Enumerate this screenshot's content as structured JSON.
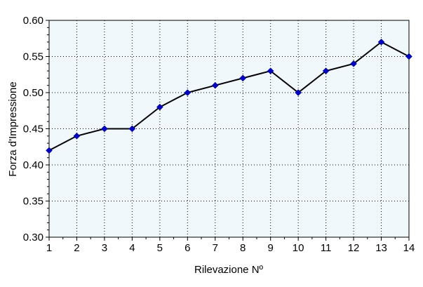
{
  "chart_data": {
    "type": "line",
    "xlabel": "Rilevazione Nº",
    "ylabel": "Forza d'Impressione",
    "x": [
      1,
      2,
      3,
      4,
      5,
      6,
      7,
      8,
      9,
      10,
      11,
      12,
      13,
      14
    ],
    "series": [
      {
        "values": [
          0.42,
          0.44,
          0.45,
          0.45,
          0.48,
          0.5,
          0.51,
          0.52,
          0.53,
          0.5,
          0.53,
          0.54,
          0.57,
          0.55
        ]
      }
    ],
    "xlim": [
      1,
      14
    ],
    "ylim": [
      0.3,
      0.6
    ],
    "x_ticks": [
      "1",
      "2",
      "3",
      "4",
      "5",
      "6",
      "7",
      "8",
      "9",
      "10",
      "11",
      "12",
      "13",
      "14"
    ],
    "y_ticks": [
      "0.30",
      "0.35",
      "0.40",
      "0.45",
      "0.50",
      "0.55",
      "0.60"
    ],
    "grid": true,
    "legend": "none",
    "colors": {
      "plot_background": "#f0f8fc",
      "line": "#000000",
      "marker": "#0000cc",
      "grid": "#000000"
    },
    "marker": "diamond"
  }
}
